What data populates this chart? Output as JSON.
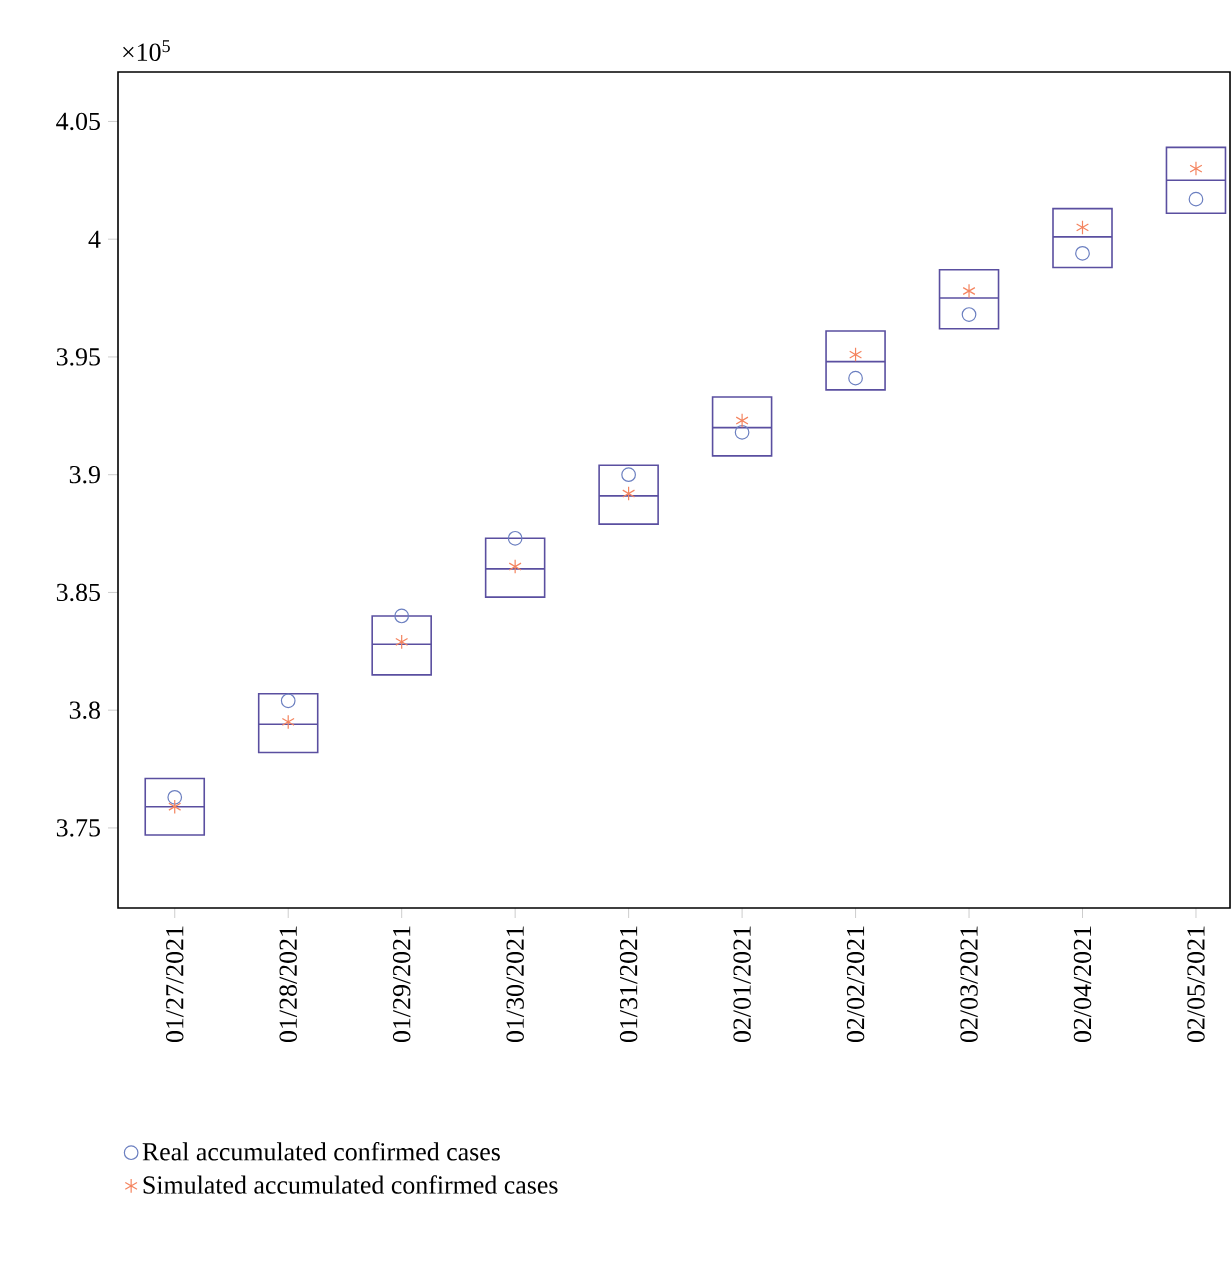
{
  "chart_data": {
    "type": "box",
    "categories": [
      "01/27/2021",
      "01/28/2021",
      "01/29/2021",
      "01/30/2021",
      "01/31/2021",
      "02/01/2021",
      "02/02/2021",
      "02/03/2021",
      "02/04/2021",
      "02/05/2021"
    ],
    "ylim": [
      3.716,
      4.071
    ],
    "yticks": [
      3.75,
      3.8,
      3.85,
      3.9,
      3.95,
      4,
      4.05
    ],
    "annotations": [
      "×10$^{5}$"
    ],
    "legend": "bottom left",
    "series": [
      {
        "type": "box",
        "color": "#5a4fa0",
        "boxes": [
          {
            "low": 3.747,
            "q1": 3.747,
            "median": 3.759,
            "q3": 3.771,
            "high": 3.771
          },
          {
            "low": 3.782,
            "q1": 3.782,
            "median": 3.794,
            "q3": 3.807,
            "high": 3.807
          },
          {
            "low": 3.815,
            "q1": 3.815,
            "median": 3.828,
            "q3": 3.84,
            "high": 3.84
          },
          {
            "low": 3.848,
            "q1": 3.848,
            "median": 3.86,
            "q3": 3.873,
            "high": 3.873
          },
          {
            "low": 3.879,
            "q1": 3.879,
            "median": 3.891,
            "q3": 3.904,
            "high": 3.904
          },
          {
            "low": 3.908,
            "q1": 3.908,
            "median": 3.92,
            "q3": 3.933,
            "high": 3.933
          },
          {
            "low": 3.936,
            "q1": 3.936,
            "median": 3.948,
            "q3": 3.961,
            "high": 3.961
          },
          {
            "low": 3.962,
            "q1": 3.962,
            "median": 3.975,
            "q3": 3.987,
            "high": 3.987
          },
          {
            "low": 3.988,
            "q1": 3.988,
            "median": 4.001,
            "q3": 4.013,
            "high": 4.013
          },
          {
            "low": 4.011,
            "q1": 4.011,
            "median": 4.025,
            "q3": 4.039,
            "high": 4.039
          }
        ]
      },
      {
        "type": "scatter",
        "name": "Real accumulated confirmed cases",
        "color": "#6b7fc0",
        "marker": "circle",
        "values": [
          3.763,
          3.804,
          3.84,
          3.873,
          3.9,
          3.918,
          3.941,
          3.968,
          3.994,
          4.017
        ]
      },
      {
        "type": "scatter",
        "name": "Simulated accumulated confirmed cases",
        "color": "#f4845f",
        "marker": "cross",
        "values": [
          3.759,
          3.795,
          3.829,
          3.861,
          3.892,
          3.923,
          3.951,
          3.978,
          4.005,
          4.03
        ]
      }
    ]
  }
}
